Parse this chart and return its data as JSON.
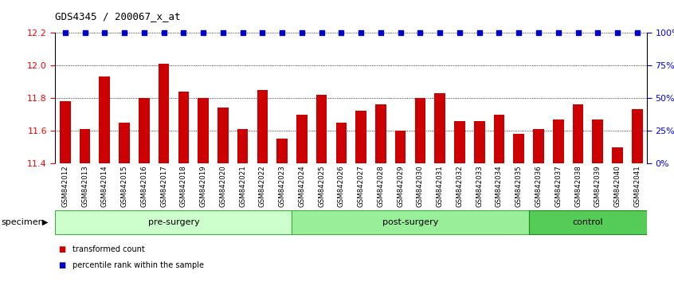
{
  "title": "GDS4345 / 200067_x_at",
  "categories": [
    "GSM842012",
    "GSM842013",
    "GSM842014",
    "GSM842015",
    "GSM842016",
    "GSM842017",
    "GSM842018",
    "GSM842019",
    "GSM842020",
    "GSM842021",
    "GSM842022",
    "GSM842023",
    "GSM842024",
    "GSM842025",
    "GSM842026",
    "GSM842027",
    "GSM842028",
    "GSM842029",
    "GSM842030",
    "GSM842031",
    "GSM842032",
    "GSM842033",
    "GSM842034",
    "GSM842035",
    "GSM842036",
    "GSM842037",
    "GSM842038",
    "GSM842039",
    "GSM842040",
    "GSM842041"
  ],
  "bar_values": [
    11.78,
    11.61,
    11.93,
    11.65,
    11.8,
    12.01,
    11.84,
    11.8,
    11.74,
    11.61,
    11.85,
    11.55,
    11.7,
    11.82,
    11.65,
    11.72,
    11.76,
    11.6,
    11.8,
    11.83,
    11.66,
    11.66,
    11.7,
    11.58,
    11.61,
    11.67,
    11.76,
    11.67,
    11.5,
    11.73
  ],
  "percentile_values": [
    100,
    100,
    100,
    100,
    100,
    100,
    100,
    100,
    100,
    100,
    100,
    100,
    100,
    100,
    100,
    100,
    100,
    100,
    100,
    100,
    100,
    100,
    100,
    100,
    100,
    100,
    100,
    100,
    100,
    100
  ],
  "bar_color": "#cc0000",
  "percentile_color": "#0000cc",
  "ylim_left": [
    11.4,
    12.2
  ],
  "ylim_right": [
    0,
    100
  ],
  "yticks_left": [
    11.4,
    11.6,
    11.8,
    12.0,
    12.2
  ],
  "yticks_right": [
    0,
    25,
    50,
    75,
    100
  ],
  "ytick_labels_right": [
    "0%",
    "25%",
    "50%",
    "75%",
    "100%"
  ],
  "groups": [
    {
      "label": "pre-surgery",
      "start": 0,
      "end": 11,
      "color": "#ccffcc",
      "border_color": "#44aa44"
    },
    {
      "label": "post-surgery",
      "start": 12,
      "end": 23,
      "color": "#99ee99",
      "border_color": "#44aa44"
    },
    {
      "label": "control",
      "start": 24,
      "end": 29,
      "color": "#55cc55",
      "border_color": "#228822"
    }
  ],
  "legend_items": [
    {
      "label": "transformed count",
      "color": "#cc0000"
    },
    {
      "label": "percentile rank within the sample",
      "color": "#0000cc"
    }
  ],
  "xtick_bg": "#c8c8c8",
  "sep_color": "#555555",
  "plot_bg": "#ffffff"
}
